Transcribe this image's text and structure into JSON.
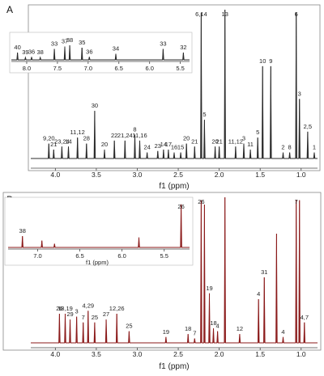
{
  "chart_data": [
    {
      "panel": "A",
      "type": "line",
      "xlabel": "f1 (ppm)",
      "x_ticks": [
        "4.0",
        "3.5",
        "3.0",
        "2.5",
        "2.0",
        "1.5",
        "1.0"
      ],
      "xlim": [
        4.3,
        0.8
      ],
      "color": "#2b2b2b",
      "peaks": [
        {
          "ppm": 4.08,
          "h": 0.1,
          "label": "9,20"
        },
        {
          "ppm": 4.02,
          "h": 0.06,
          "label": "21"
        },
        {
          "ppm": 3.92,
          "h": 0.08,
          "label": "23,24"
        },
        {
          "ppm": 3.84,
          "h": 0.08,
          "label": "14"
        },
        {
          "ppm": 3.73,
          "h": 0.14,
          "label": "11,12"
        },
        {
          "ppm": 3.62,
          "h": 0.1,
          "label": "28"
        },
        {
          "ppm": 3.52,
          "h": 0.32,
          "label": "30"
        },
        {
          "ppm": 3.4,
          "h": 0.06,
          "label": "20"
        },
        {
          "ppm": 3.28,
          "h": 0.12,
          "label": "22"
        },
        {
          "ppm": 3.15,
          "h": 0.12,
          "label": "21,24"
        },
        {
          "ppm": 3.03,
          "h": 0.16,
          "label": "8"
        },
        {
          "ppm": 2.97,
          "h": 0.12,
          "label": "11,16"
        },
        {
          "ppm": 2.88,
          "h": 0.04,
          "label": "24"
        },
        {
          "ppm": 2.75,
          "h": 0.05,
          "label": "23"
        },
        {
          "ppm": 2.68,
          "h": 0.06,
          "label": "14"
        },
        {
          "ppm": 2.62,
          "h": 0.06,
          "label": "17"
        },
        {
          "ppm": 2.55,
          "h": 0.04,
          "label": "16"
        },
        {
          "ppm": 2.47,
          "h": 0.04,
          "label": "15"
        },
        {
          "ppm": 2.4,
          "h": 0.1,
          "label": "20"
        },
        {
          "ppm": 2.3,
          "h": 0.08,
          "label": "21"
        },
        {
          "ppm": 2.22,
          "h": 0.98,
          "label": "6,14"
        },
        {
          "ppm": 2.18,
          "h": 0.26,
          "label": "5"
        },
        {
          "ppm": 2.0,
          "h": 0.08,
          "label": "21"
        },
        {
          "ppm": 1.93,
          "h": 1.0,
          "label": "13"
        },
        {
          "ppm": 2.05,
          "h": 0.08,
          "label": "20"
        },
        {
          "ppm": 1.8,
          "h": 0.08,
          "label": "11,12"
        },
        {
          "ppm": 1.7,
          "h": 0.1,
          "label": "3"
        },
        {
          "ppm": 1.62,
          "h": 0.06,
          "label": "11"
        },
        {
          "ppm": 1.53,
          "h": 0.14,
          "label": "5"
        },
        {
          "ppm": 1.47,
          "h": 0.62,
          "label": "10"
        },
        {
          "ppm": 1.37,
          "h": 0.62,
          "label": "9"
        },
        {
          "ppm": 1.22,
          "h": 0.04,
          "label": "2"
        },
        {
          "ppm": 1.14,
          "h": 0.04,
          "label": "8"
        },
        {
          "ppm": 1.06,
          "h": 0.98,
          "label": "6"
        },
        {
          "ppm": 1.02,
          "h": 0.4,
          "label": "3"
        },
        {
          "ppm": 0.92,
          "h": 0.18,
          "label": "2,5"
        },
        {
          "ppm": 0.84,
          "h": 0.04,
          "label": "1"
        }
      ],
      "inset": {
        "xlabel": "",
        "x_ticks": [
          "8.0",
          "7.5",
          "7.0",
          "6.5",
          "6.0",
          "5.5"
        ],
        "xlim": [
          8.25,
          5.35
        ],
        "peaks": [
          {
            "ppm": 8.15,
            "h": 0.3,
            "label": "40"
          },
          {
            "ppm": 8.02,
            "h": 0.1,
            "label": "39"
          },
          {
            "ppm": 7.92,
            "h": 0.12,
            "label": "36"
          },
          {
            "ppm": 7.78,
            "h": 0.1,
            "label": "38"
          },
          {
            "ppm": 7.55,
            "h": 0.45,
            "label": "33"
          },
          {
            "ppm": 7.38,
            "h": 0.55,
            "label": "37"
          },
          {
            "ppm": 7.3,
            "h": 0.6,
            "label": "38"
          },
          {
            "ppm": 7.1,
            "h": 0.5,
            "label": "35"
          },
          {
            "ppm": 6.98,
            "h": 0.12,
            "label": "36"
          },
          {
            "ppm": 6.55,
            "h": 0.25,
            "label": "34"
          },
          {
            "ppm": 5.78,
            "h": 0.45,
            "label": "33"
          },
          {
            "ppm": 5.45,
            "h": 0.3,
            "label": "32"
          }
        ]
      }
    },
    {
      "panel": "B",
      "type": "line",
      "xlabel": "f1 (ppm)",
      "x_ticks": [
        "4.0",
        "3.5",
        "3.0",
        "2.5",
        "2.0",
        "1.5",
        "1.0"
      ],
      "xlim": [
        4.3,
        0.8
      ],
      "color": "#8b1a1a",
      "peaks": [
        {
          "ppm": 3.95,
          "h": 0.2,
          "label": "26"
        },
        {
          "ppm": 3.88,
          "h": 0.2,
          "label": "18,19"
        },
        {
          "ppm": 3.82,
          "h": 0.16,
          "label": "29"
        },
        {
          "ppm": 3.74,
          "h": 0.18,
          "label": "3"
        },
        {
          "ppm": 3.66,
          "h": 0.14,
          "label": "7"
        },
        {
          "ppm": 3.6,
          "h": 0.22,
          "label": "4,29"
        },
        {
          "ppm": 3.52,
          "h": 0.14,
          "label": "25"
        },
        {
          "ppm": 3.38,
          "h": 0.16,
          "label": "27"
        },
        {
          "ppm": 3.25,
          "h": 0.2,
          "label": "12,26"
        },
        {
          "ppm": 3.1,
          "h": 0.08,
          "label": "25"
        },
        {
          "ppm": 2.65,
          "h": 0.04,
          "label": "19"
        },
        {
          "ppm": 2.38,
          "h": 0.06,
          "label": "18"
        },
        {
          "ppm": 2.3,
          "h": 0.03,
          "label": "7"
        },
        {
          "ppm": 2.22,
          "h": 0.98,
          "label": "26"
        },
        {
          "ppm": 2.18,
          "h": 0.95,
          "label": ""
        },
        {
          "ppm": 2.12,
          "h": 0.34,
          "label": "19"
        },
        {
          "ppm": 2.07,
          "h": 0.1,
          "label": "18"
        },
        {
          "ppm": 2.02,
          "h": 0.08,
          "label": "4"
        },
        {
          "ppm": 1.93,
          "h": 1.0,
          "label": ""
        },
        {
          "ppm": 1.75,
          "h": 0.06,
          "label": "12"
        },
        {
          "ppm": 1.52,
          "h": 0.3,
          "label": "4"
        },
        {
          "ppm": 1.45,
          "h": 0.45,
          "label": "31"
        },
        {
          "ppm": 1.3,
          "h": 0.75,
          "label": ""
        },
        {
          "ppm": 1.22,
          "h": 0.04,
          "label": "4"
        },
        {
          "ppm": 1.06,
          "h": 0.98,
          "label": "7"
        },
        {
          "ppm": 1.02,
          "h": 0.98,
          "label": ""
        },
        {
          "ppm": 0.96,
          "h": 0.14,
          "label": "4,7"
        }
      ],
      "inset": {
        "xlabel": "f1 (ppm)",
        "x_ticks": [
          "7.0",
          "6.5",
          "6.0",
          "5.5"
        ],
        "xlim": [
          7.35,
          5.2
        ],
        "peaks": [
          {
            "ppm": 7.18,
            "h": 0.25,
            "label": "38"
          },
          {
            "ppm": 6.95,
            "h": 0.15,
            "label": ""
          },
          {
            "ppm": 6.8,
            "h": 0.08,
            "label": ""
          },
          {
            "ppm": 5.8,
            "h": 0.22,
            "label": ""
          },
          {
            "ppm": 5.3,
            "h": 0.95,
            "label": "26"
          }
        ]
      }
    }
  ]
}
